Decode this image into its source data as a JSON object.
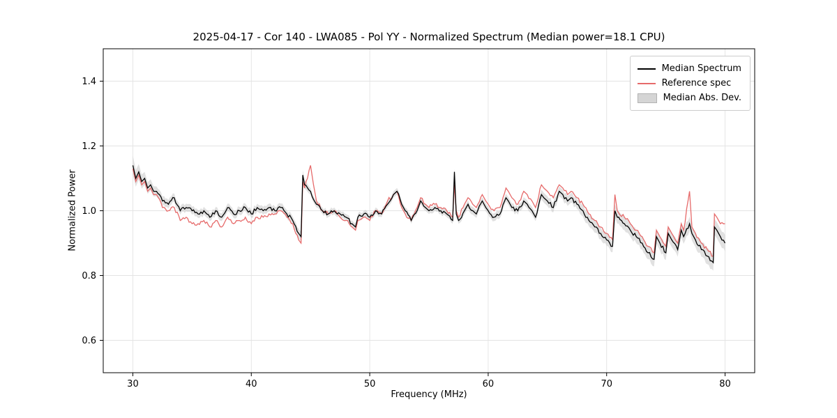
{
  "chart_data": {
    "type": "line",
    "title": "2025-04-17 - Cor 140 - LWA085 - Pol YY - Normalized Spectrum (Median power=18.1 CPU)",
    "xlabel": "Frequency (MHz)",
    "ylabel": "Normalized Power",
    "xlim": [
      27.5,
      82.5
    ],
    "ylim": [
      0.5,
      1.5
    ],
    "xticks": [
      30,
      40,
      50,
      60,
      70,
      80
    ],
    "yticks": [
      0.6,
      0.8,
      1.0,
      1.2,
      1.4
    ],
    "grid": true,
    "legend_position": "upper right",
    "legend": [
      {
        "label": "Median Spectrum",
        "type": "line",
        "color": "#000000"
      },
      {
        "label": "Reference spec",
        "type": "line",
        "color": "#e66a6a"
      },
      {
        "label": "Median Abs. Dev.",
        "type": "patch",
        "color": "#c8c8c8"
      }
    ],
    "colors": {
      "median": "#000000",
      "reference": "#e66a6a",
      "band": "#c8c8c8",
      "grid": "#e3e3e3",
      "spine": "#000000"
    },
    "x": [
      30.0,
      30.25,
      30.5,
      30.75,
      31.0,
      31.25,
      31.5,
      31.75,
      32.0,
      32.5,
      33.0,
      33.5,
      34.0,
      34.5,
      35.0,
      35.5,
      36.0,
      36.5,
      37.0,
      37.5,
      38.0,
      38.5,
      39.0,
      39.5,
      40.0,
      40.5,
      41.0,
      41.5,
      42.0,
      42.5,
      43.0,
      43.5,
      44.0,
      44.2,
      44.35,
      44.5,
      45.0,
      45.5,
      46.0,
      46.5,
      47.0,
      47.5,
      48.0,
      48.5,
      48.8,
      49.0,
      49.5,
      50.0,
      50.5,
      51.0,
      51.5,
      52.0,
      52.3,
      52.7,
      53.0,
      53.5,
      54.0,
      54.3,
      54.7,
      55.0,
      55.5,
      56.0,
      56.5,
      57.0,
      57.15,
      57.3,
      57.5,
      58.0,
      58.3,
      58.7,
      59.0,
      59.5,
      59.8,
      60.0,
      60.5,
      61.0,
      61.5,
      61.7,
      62.0,
      62.5,
      63.0,
      63.3,
      63.7,
      64.0,
      64.5,
      64.7,
      65.0,
      65.5,
      66.0,
      66.3,
      66.7,
      67.0,
      67.5,
      68.0,
      68.5,
      69.0,
      69.5,
      70.0,
      70.5,
      70.7,
      70.9,
      71.5,
      72.0,
      72.5,
      73.0,
      73.5,
      74.0,
      74.2,
      74.5,
      75.0,
      75.2,
      75.5,
      76.0,
      76.3,
      76.5,
      77.0,
      77.2,
      77.5,
      78.0,
      78.5,
      79.0,
      79.1,
      79.3,
      79.6,
      80.0
    ],
    "series": [
      {
        "name": "Median Spectrum",
        "values": [
          1.14,
          1.1,
          1.12,
          1.09,
          1.1,
          1.07,
          1.08,
          1.06,
          1.06,
          1.03,
          1.02,
          1.04,
          1.0,
          1.01,
          1.0,
          0.99,
          1.0,
          0.98,
          1.0,
          0.98,
          1.01,
          0.99,
          1.0,
          1.01,
          0.99,
          1.01,
          1.0,
          1.01,
          1.0,
          1.01,
          0.99,
          0.97,
          0.93,
          0.92,
          1.11,
          1.08,
          1.06,
          1.02,
          1.0,
          0.99,
          1.0,
          0.99,
          0.98,
          0.96,
          0.95,
          0.98,
          0.99,
          0.98,
          1.0,
          0.99,
          1.02,
          1.05,
          1.06,
          1.02,
          1.0,
          0.97,
          1.0,
          1.03,
          1.01,
          1.0,
          1.01,
          1.0,
          0.99,
          0.97,
          1.12,
          0.99,
          0.97,
          1.0,
          1.02,
          1.0,
          0.99,
          1.03,
          1.01,
          1.0,
          0.98,
          0.99,
          1.04,
          1.03,
          1.01,
          1.0,
          1.03,
          1.02,
          1.0,
          0.98,
          1.05,
          1.04,
          1.03,
          1.01,
          1.06,
          1.05,
          1.03,
          1.04,
          1.02,
          1.0,
          0.97,
          0.95,
          0.93,
          0.91,
          0.89,
          1.0,
          0.98,
          0.96,
          0.94,
          0.92,
          0.9,
          0.87,
          0.85,
          0.92,
          0.9,
          0.87,
          0.93,
          0.91,
          0.88,
          0.94,
          0.92,
          0.96,
          0.93,
          0.91,
          0.88,
          0.86,
          0.84,
          0.95,
          0.94,
          0.92,
          0.9
        ]
      },
      {
        "name": "Reference spec",
        "values": [
          1.13,
          1.09,
          1.11,
          1.08,
          1.09,
          1.06,
          1.07,
          1.05,
          1.05,
          1.01,
          1.0,
          1.01,
          0.97,
          0.98,
          0.96,
          0.96,
          0.97,
          0.95,
          0.97,
          0.95,
          0.98,
          0.96,
          0.97,
          0.98,
          0.96,
          0.98,
          0.98,
          0.99,
          0.99,
          1.0,
          0.98,
          0.96,
          0.91,
          0.9,
          1.09,
          1.07,
          1.14,
          1.03,
          1.0,
          0.99,
          1.0,
          0.98,
          0.97,
          0.95,
          0.94,
          0.97,
          0.98,
          0.97,
          1.0,
          0.99,
          1.03,
          1.05,
          1.06,
          1.01,
          0.99,
          0.97,
          1.01,
          1.04,
          1.02,
          1.01,
          1.02,
          1.01,
          1.0,
          0.98,
          1.08,
          1.0,
          0.98,
          1.02,
          1.04,
          1.02,
          1.01,
          1.05,
          1.03,
          1.02,
          1.0,
          1.01,
          1.07,
          1.06,
          1.04,
          1.02,
          1.06,
          1.05,
          1.03,
          1.01,
          1.08,
          1.07,
          1.06,
          1.04,
          1.08,
          1.07,
          1.05,
          1.06,
          1.04,
          1.02,
          0.99,
          0.97,
          0.95,
          0.93,
          0.91,
          1.05,
          1.0,
          0.98,
          0.96,
          0.94,
          0.92,
          0.89,
          0.87,
          0.94,
          0.92,
          0.89,
          0.95,
          0.93,
          0.9,
          0.96,
          0.94,
          1.06,
          0.95,
          0.93,
          0.9,
          0.88,
          0.86,
          0.99,
          0.98,
          0.96,
          0.96
        ]
      }
    ],
    "band": {
      "name": "Median Abs. Dev.",
      "center": "Median Spectrum",
      "half_width": [
        0.03,
        0.026,
        0.024,
        0.022,
        0.02,
        0.018,
        0.017,
        0.016,
        0.015,
        0.014,
        0.013,
        0.013,
        0.012,
        0.012,
        0.012,
        0.012,
        0.012,
        0.012,
        0.012,
        0.012,
        0.012,
        0.012,
        0.012,
        0.012,
        0.012,
        0.012,
        0.012,
        0.012,
        0.012,
        0.012,
        0.012,
        0.012,
        0.015,
        0.015,
        0.015,
        0.014,
        0.01,
        0.01,
        0.01,
        0.01,
        0.01,
        0.01,
        0.01,
        0.01,
        0.01,
        0.01,
        0.01,
        0.01,
        0.01,
        0.01,
        0.01,
        0.01,
        0.01,
        0.01,
        0.01,
        0.01,
        0.01,
        0.01,
        0.01,
        0.01,
        0.01,
        0.01,
        0.01,
        0.01,
        0.01,
        0.01,
        0.01,
        0.012,
        0.012,
        0.012,
        0.012,
        0.012,
        0.012,
        0.012,
        0.012,
        0.012,
        0.012,
        0.012,
        0.012,
        0.012,
        0.012,
        0.012,
        0.012,
        0.012,
        0.015,
        0.015,
        0.015,
        0.015,
        0.015,
        0.015,
        0.015,
        0.015,
        0.015,
        0.018,
        0.018,
        0.018,
        0.018,
        0.018,
        0.018,
        0.02,
        0.02,
        0.02,
        0.02,
        0.02,
        0.02,
        0.02,
        0.022,
        0.022,
        0.022,
        0.022,
        0.022,
        0.022,
        0.022,
        0.022,
        0.022,
        0.022,
        0.022,
        0.022,
        0.022,
        0.025,
        0.025,
        0.025,
        0.025,
        0.025,
        0.025
      ]
    }
  }
}
